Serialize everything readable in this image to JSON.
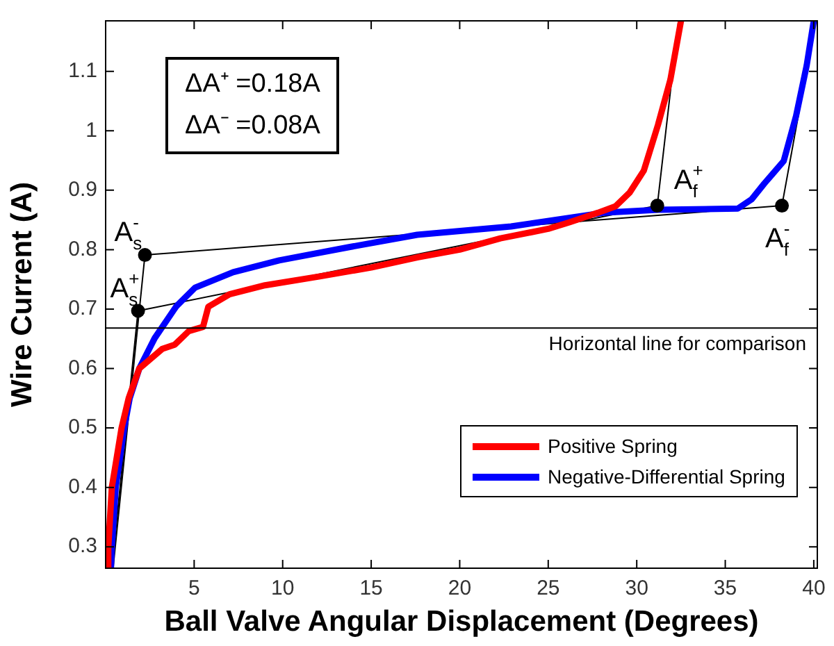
{
  "chart_data": {
    "type": "line",
    "xlabel": "Ball Valve Angular Displacement (Degrees)",
    "ylabel": "Wire Current (A)",
    "xlim": [
      0,
      40.2
    ],
    "ylim": [
      0.264,
      1.185
    ],
    "xticks": [
      5,
      10,
      15,
      20,
      25,
      30,
      35,
      40
    ],
    "yticks": [
      0.3,
      0.4,
      0.5,
      0.6,
      0.7,
      0.8,
      0.9,
      1,
      1.1
    ],
    "grid": false,
    "legend": "bottom right",
    "marker": "none",
    "line_style": "solid",
    "series": [
      {
        "name": "Positive Spring",
        "color": "#ff0000",
        "x": [
          0.1,
          0.15,
          0.35,
          0.9,
          1.3,
          1.9,
          3.2,
          3.9,
          4.7,
          5.5,
          5.8,
          7.0,
          9.0,
          12.1,
          15,
          17.6,
          20,
          22.3,
          25,
          26.2,
          27.8,
          28.8,
          29.6,
          30.4,
          31.2,
          31.9,
          32.5
        ],
        "values": [
          0.264,
          0.3,
          0.4,
          0.5,
          0.55,
          0.6,
          0.633,
          0.64,
          0.663,
          0.67,
          0.704,
          0.725,
          0.74,
          0.755,
          0.77,
          0.787,
          0.8,
          0.819,
          0.835,
          0.846,
          0.862,
          0.873,
          0.896,
          0.933,
          1.01,
          1.086,
          1.185
        ]
      },
      {
        "name": "Negative-Differential Spring",
        "color": "#0000ff",
        "x": [
          0.3,
          0.35,
          0.57,
          1.05,
          1.36,
          1.9,
          2.77,
          4.0,
          5.05,
          7.2,
          9.8,
          13.7,
          17.6,
          22.9,
          28.1,
          31.2,
          35.7,
          36.5,
          37.2,
          38.3,
          39.0,
          39.6,
          40.0
        ],
        "values": [
          0.264,
          0.3,
          0.4,
          0.5,
          0.55,
          0.6,
          0.651,
          0.705,
          0.736,
          0.762,
          0.782,
          0.804,
          0.825,
          0.839,
          0.862,
          0.867,
          0.869,
          0.885,
          0.911,
          0.949,
          1.025,
          1.11,
          1.185
        ]
      },
      {
        "type": "line",
        "color": "#000000",
        "x": [
          2.22,
          38.2
        ],
        "values": [
          0.791,
          0.874
        ]
      },
      {
        "type": "line",
        "color": "#000000",
        "x": [
          1.83,
          31.16
        ],
        "values": [
          0.697,
          0.874
        ]
      },
      {
        "type": "line",
        "color": "#000000",
        "x": [
          0.42,
          2.22
        ],
        "values": [
          0.264,
          0.791
        ]
      },
      {
        "type": "line",
        "color": "#000000",
        "x": [
          0.35,
          1.83
        ],
        "values": [
          0.264,
          0.697
        ]
      },
      {
        "type": "line",
        "color": "#000000",
        "x": [
          31.16,
          32.36
        ],
        "values": [
          0.874,
          1.185
        ]
      },
      {
        "type": "line",
        "color": "#000000",
        "x": [
          38.2,
          40.1
        ],
        "values": [
          0.874,
          1.185
        ]
      },
      {
        "type": "scatter",
        "color": "#000000",
        "marker": "circle",
        "x": [
          2.22,
          1.83,
          31.16,
          38.2
        ],
        "values": [
          0.791,
          0.697,
          0.874,
          0.874
        ]
      }
    ],
    "ref_lines": [
      {
        "axis": "y",
        "value": 0.668,
        "label": "Horizontal line for comparison",
        "color": "#000000"
      }
    ],
    "annotations": [
      "ΔA⁺ =0.18A",
      "ΔA⁻ =0.08A",
      {
        "text": "A$_{s}$$^{-}$",
        "x": 2.22,
        "y": 0.791
      },
      {
        "text": "A$_{s}$$^{+}$",
        "x": 1.83,
        "y": 0.697
      },
      {
        "text": "A$_{f}$$^{+}$",
        "x": 31.16,
        "y": 0.874
      },
      {
        "text": "A$_{f}$$^{-}$",
        "x": 38.2,
        "y": 0.874
      }
    ]
  }
}
